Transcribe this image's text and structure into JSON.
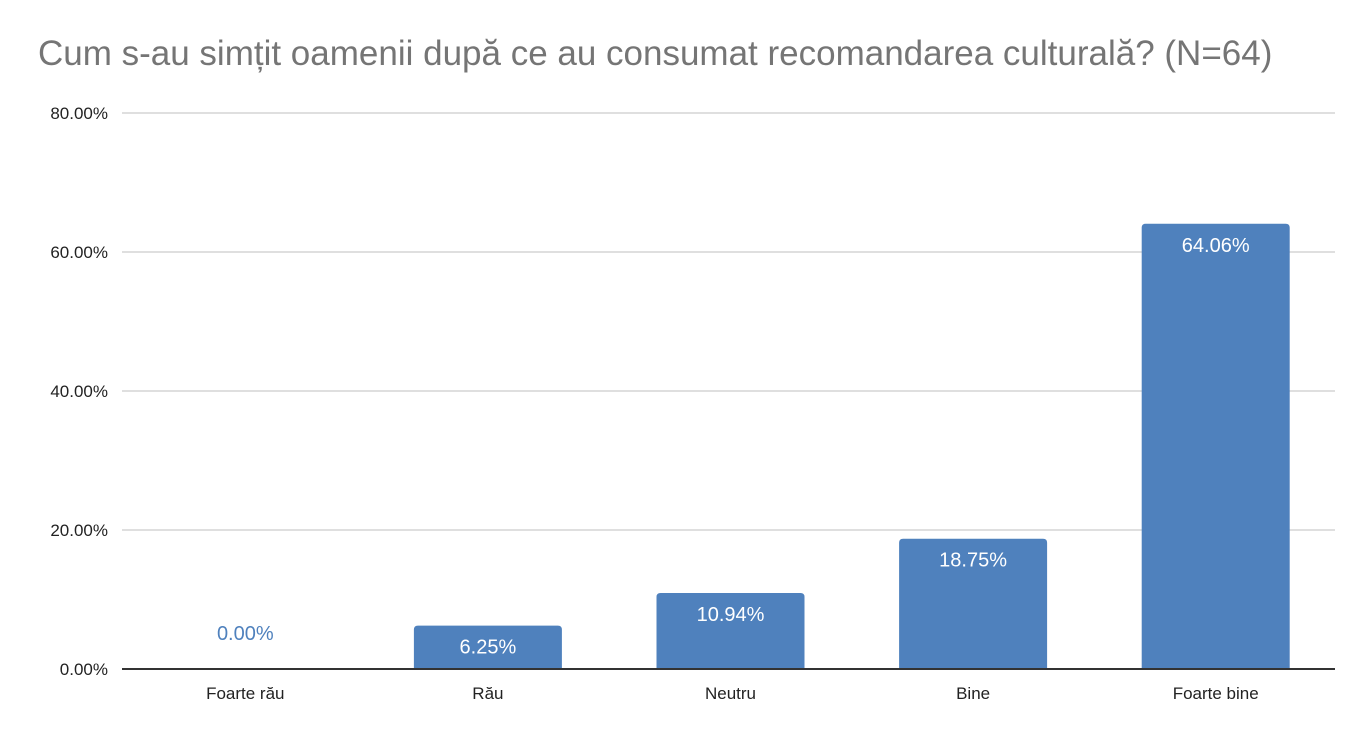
{
  "chart_data": {
    "type": "bar",
    "title": "Cum s-au simțit oamenii după ce au consumat recomandarea culturală? (N=64)",
    "xlabel": "",
    "ylabel": "",
    "categories": [
      "Foarte rău",
      "Rău",
      "Neutru",
      "Bine",
      "Foarte bine"
    ],
    "values": [
      0.0,
      6.25,
      10.94,
      18.75,
      64.06
    ],
    "data_labels": [
      "0.00%",
      "6.25%",
      "10.94%",
      "18.75%",
      "64.06%"
    ],
    "ylim": [
      0,
      80
    ],
    "yticks": [
      0,
      20,
      40,
      60,
      80
    ],
    "ytick_labels": [
      "0.00%",
      "20.00%",
      "40.00%",
      "60.00%",
      "80.00%"
    ],
    "grid": true,
    "legend": "none",
    "colors": {
      "bar": "#4f81bd",
      "grid": "#cccccc",
      "axis": "#333333",
      "title": "#757575"
    }
  }
}
